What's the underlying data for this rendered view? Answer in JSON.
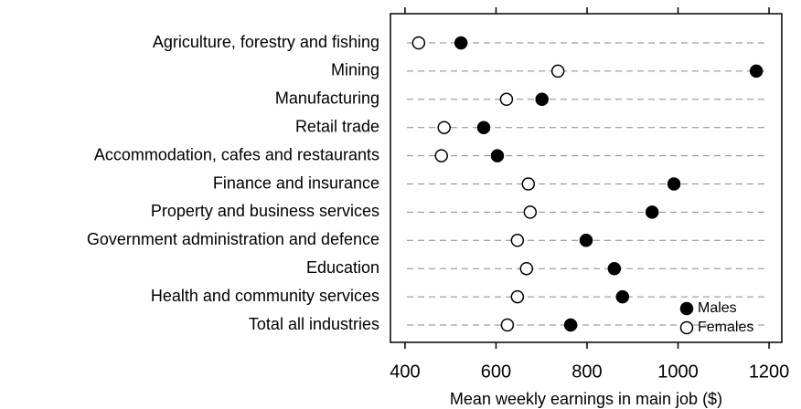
{
  "chart_data": {
    "type": "dot",
    "x_label": "Mean weekly earnings in main job ($)",
    "categories": [
      "Agriculture, forestry and fishing",
      "Mining",
      "Manufacturing",
      "Retail trade",
      "Accommodation, cafes and restaurants",
      "Finance and insurance",
      "Property and business services",
      "Government administration and defence",
      "Education",
      "Health and community services",
      "Total all industries"
    ],
    "series": [
      {
        "name": "Males",
        "color": "#000000",
        "values": [
          523,
          1172,
          701,
          573,
          603,
          991,
          943,
          798,
          860,
          878,
          764
        ]
      },
      {
        "name": "Females",
        "color": "#ffffff",
        "values": [
          430,
          736,
          623,
          486,
          480,
          671,
          675,
          647,
          667,
          647,
          625
        ]
      }
    ],
    "xlim": [
      368,
      1228
    ],
    "xticks": [
      400,
      600,
      800,
      1000,
      1200
    ],
    "grid": true,
    "legend": "lower right"
  }
}
